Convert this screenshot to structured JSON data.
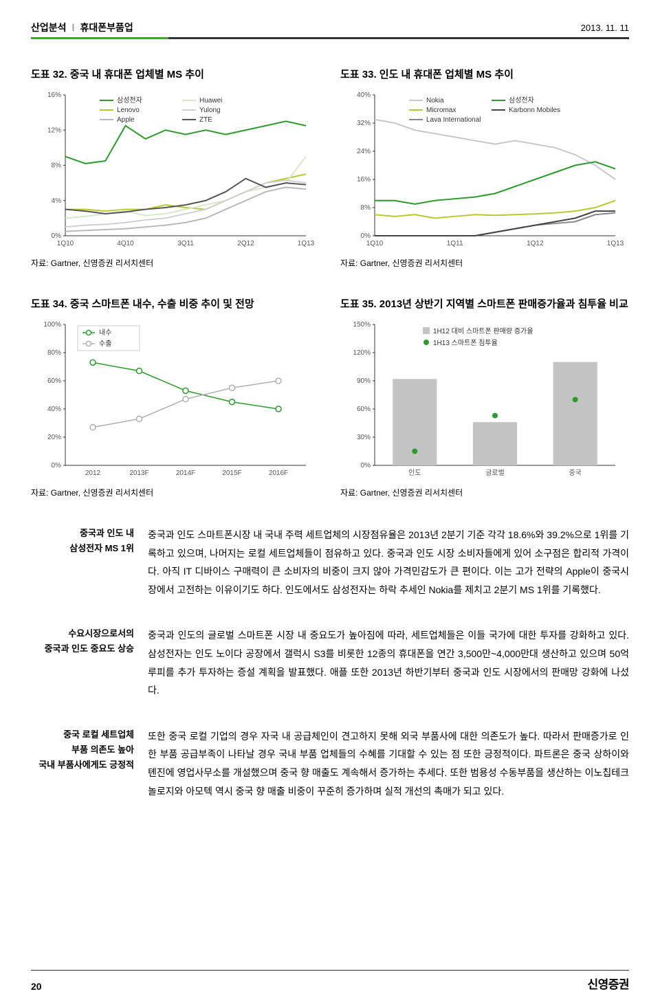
{
  "header": {
    "category": "산업분석",
    "sep": "Ⅰ",
    "sector": "휴대폰부품업",
    "date": "2013. 11. 11"
  },
  "chart32": {
    "title": "도표 32. 중국 내 휴대폰 업체별 MS 추이",
    "source": "자료: Gartner, 신영증권 리서치센터",
    "yticks": [
      "0%",
      "4%",
      "8%",
      "12%",
      "16%"
    ],
    "xticks": [
      "1Q10",
      "4Q10",
      "3Q11",
      "2Q12",
      "1Q13"
    ],
    "series": [
      {
        "name": "삼성전자",
        "color": "#2b9b2b",
        "vals": [
          9,
          8.2,
          8.5,
          12.5,
          11,
          12,
          11.5,
          12,
          11.5,
          12,
          12.5,
          13,
          12.5
        ]
      },
      {
        "name": "Lenovo",
        "color": "#b8c92e",
        "vals": [
          3,
          3,
          2.8,
          3,
          3,
          3.5,
          3.2,
          3,
          4,
          5,
          6,
          6.5,
          7
        ]
      },
      {
        "name": "Apple",
        "color": "#b8b8b8",
        "vals": [
          0.5,
          0.6,
          0.7,
          0.8,
          1,
          1.2,
          1.5,
          2,
          3,
          4,
          5,
          5.5,
          5.3
        ]
      },
      {
        "name": "Huawei",
        "color": "#d9e8c8",
        "vals": [
          2,
          2.2,
          2.5,
          2.8,
          2.3,
          2.5,
          3,
          3.5,
          4,
          5,
          5.5,
          6,
          9
        ]
      },
      {
        "name": "Yulong",
        "color": "#d0d0d0",
        "vals": [
          1,
          1.2,
          1.3,
          1.5,
          1.8,
          2,
          2.5,
          3,
          4,
          5,
          6,
          6.3,
          6
        ]
      },
      {
        "name": "ZTE",
        "color": "#555",
        "vals": [
          3,
          2.8,
          2.5,
          2.7,
          3,
          3.2,
          3.5,
          4,
          5,
          6.5,
          5.5,
          6,
          5.8
        ]
      }
    ]
  },
  "chart33": {
    "title": "도표 33. 인도 내 휴대폰 업체별 MS 추이",
    "source": "자료: Gartner, 신영증권 리서치센터",
    "yticks": [
      "0%",
      "8%",
      "16%",
      "24%",
      "32%",
      "40%"
    ],
    "xticks": [
      "1Q10",
      "1Q11",
      "1Q12",
      "1Q13"
    ],
    "series": [
      {
        "name": "Nokia",
        "color": "#c8c8c8",
        "vals": [
          33,
          32,
          30,
          29,
          28,
          27,
          26,
          27,
          26,
          25,
          23,
          20,
          16
        ]
      },
      {
        "name": "Micromax",
        "color": "#b8c92e",
        "vals": [
          6,
          5.5,
          6,
          5,
          5.5,
          6,
          5.8,
          6,
          6.2,
          6.5,
          7,
          8,
          10
        ]
      },
      {
        "name": "Lava International",
        "color": "#888",
        "vals": [
          0,
          0,
          0,
          0,
          0,
          0,
          1,
          2,
          3,
          3.5,
          4,
          6,
          6.5
        ]
      },
      {
        "name": "삼성전자",
        "color": "#2b9b2b",
        "vals": [
          10,
          10,
          9,
          10,
          10.5,
          11,
          12,
          14,
          16,
          18,
          20,
          21,
          19
        ]
      },
      {
        "name": "Karbonn Mobiles",
        "color": "#444",
        "vals": [
          0,
          0,
          0,
          0,
          0,
          0,
          1,
          2,
          3,
          4,
          5,
          7,
          7
        ]
      }
    ]
  },
  "chart34": {
    "title": "도표 34. 중국 스마트폰 내수, 수출 비중 추이 및 전망",
    "source": "자료: Gartner, 신영증권 리서치센터",
    "yticks": [
      "0%",
      "20%",
      "40%",
      "60%",
      "80%",
      "100%"
    ],
    "xticks": [
      "2012",
      "2013F",
      "2014F",
      "2015F",
      "2016F"
    ],
    "series": [
      {
        "name": "내수",
        "color": "#2b9b2b",
        "vals": [
          73,
          67,
          53,
          45,
          40
        ]
      },
      {
        "name": "수출",
        "color": "#b0b0b0",
        "vals": [
          27,
          33,
          47,
          55,
          60
        ]
      }
    ]
  },
  "chart35": {
    "title": "도표 35. 2013년 상반기 지역별 스마트폰 판매증가율과 침투율 비교",
    "source": "자료: Gartner, 신영증권 리서치센터",
    "yticks": [
      "0%",
      "30%",
      "60%",
      "90%",
      "120%",
      "150%"
    ],
    "xticks": [
      "인도",
      "글로벌",
      "중국"
    ],
    "legend": {
      "bar": "1H12 대비 스마트폰 판매량 증가율",
      "dot": "1H13 스마트폰 침투율"
    },
    "bars": [
      92,
      46,
      110
    ],
    "dots": [
      15,
      53,
      70
    ],
    "bar_color": "#c4c4c4",
    "dot_color": "#2b9b2b"
  },
  "body": [
    {
      "label": "중국과 인도 내\n삼성전자 MS 1위",
      "text": "중국과 인도 스마트폰시장 내 국내 주력 세트업체의 시장점유율은 2013년 2분기 기준 각각 18.6%와 39.2%으로 1위를 기록하고 있으며, 나머지는 로컬 세트업체들이 점유하고 있다. 중국과 인도 시장 소비자들에게 있어 소구점은 합리적 가격이다. 아직 IT 디바이스 구매력이 큰 소비자의 비중이 크지 않아 가격민감도가 큰 편이다. 이는 고가 전략의 Apple이 중국시장에서 고전하는 이유이기도 하다. 인도에서도 삼성전자는 하락 추세인 Nokia를 제치고 2분기 MS 1위를 기록했다."
    },
    {
      "label": "수요시장으로서의\n중국과 인도 중요도 상승",
      "text": "중국과 인도의 글로벌 스마트폰 시장 내 중요도가 높아짐에 따라, 세트업체들은 이들 국가에 대한 투자를 강화하고 있다. 삼성전자는 인도 노이다 공장에서 갤럭시 S3를 비롯한 12종의 휴대폰을 연간 3,500만~4,000만대 생산하고 있으며 50억 루피를 추가 투자하는 증설 계획을 발표했다. 애플 또한 2013년 하반기부터 중국과 인도 시장에서의 판매망 강화에 나섰다."
    },
    {
      "label": "중국 로컬 세트업체\n부품 의존도 높아\n국내 부품사에게도 긍정적",
      "text": "또한 중국 로컬 기업의 경우 자국 내 공급체인이 견고하지 못해 외국 부품사에 대한 의존도가 높다. 따라서 판매증가로 인한 부품 공급부족이 나타날 경우 국내 부품 업체들의 수혜를 기대할 수 있는 점 또한 긍정적이다. 파트론은 중국 상하이와 톈진에 영업사무소를 개설했으며 중국 향 매출도 계속해서 증가하는 추세다. 또한 범용성 수동부품을 생산하는 이노칩테크놀로지와 아모텍 역시 중국 향 매출 비중이 꾸준히 증가하며 실적 개선의 촉매가 되고 있다."
    }
  ],
  "footer": {
    "page": "20",
    "logo": "신영증권"
  }
}
